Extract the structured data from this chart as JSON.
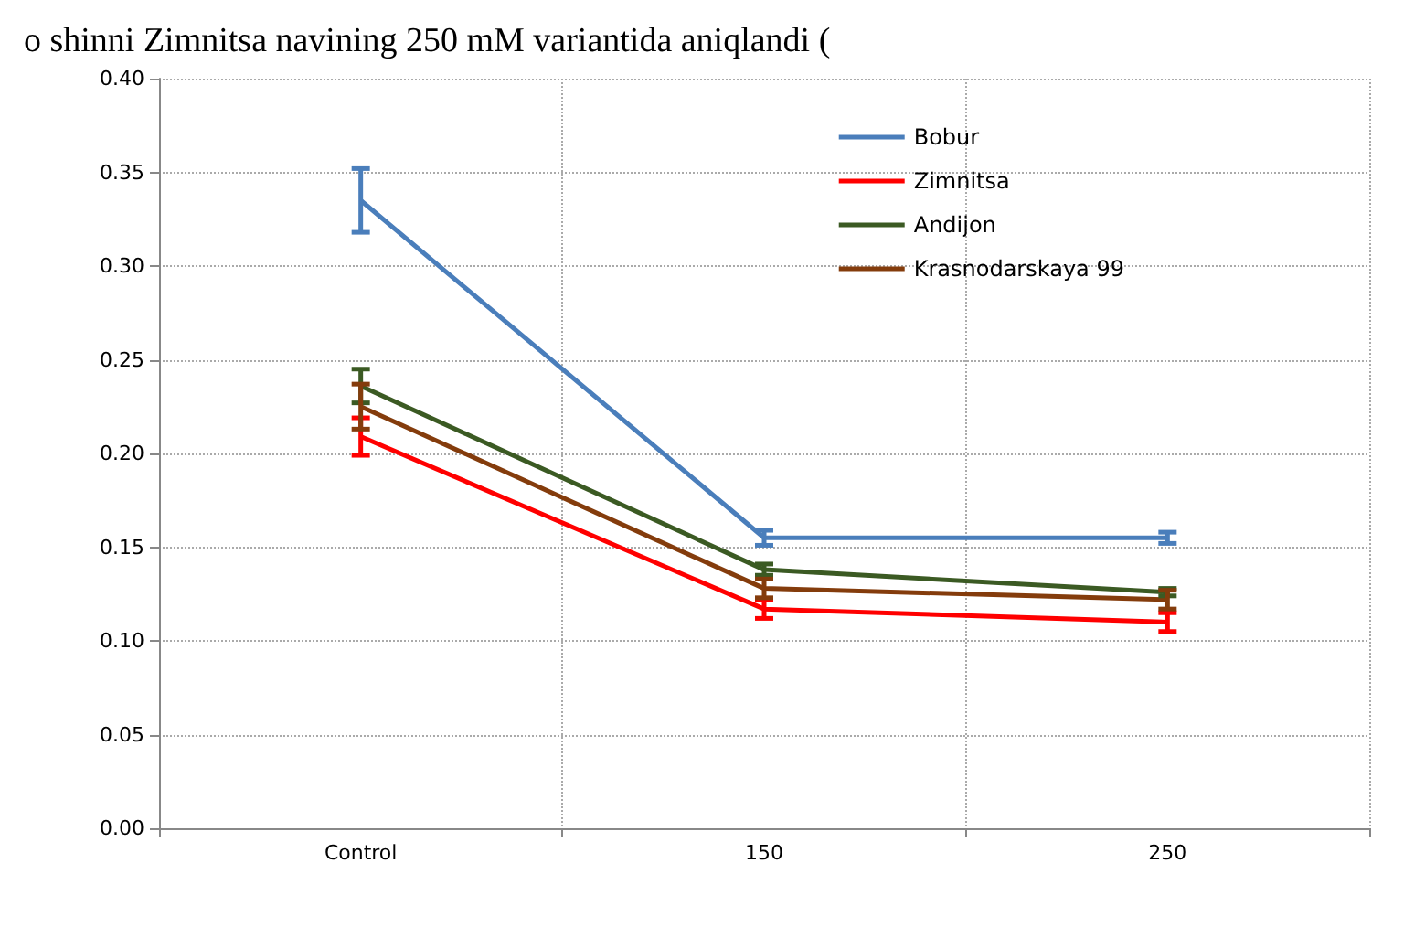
{
  "chart_data": {
    "type": "line",
    "title": "o shinni Zimnitsa navining 250 mM variantida aniqlandi (",
    "categories": [
      "Control",
      "150",
      "250"
    ],
    "series": [
      {
        "name": "Bobur",
        "color": "#4a7ebb",
        "values": [
          0.335,
          0.155,
          0.155
        ],
        "errors": [
          0.017,
          0.004,
          0.003
        ]
      },
      {
        "name": "Zimnitsa",
        "color": "#ff0000",
        "values": [
          0.209,
          0.117,
          0.11
        ],
        "errors": [
          0.01,
          0.005,
          0.005
        ]
      },
      {
        "name": "Andijon",
        "color": "#3b5a23",
        "values": [
          0.236,
          0.138,
          0.126
        ],
        "errors": [
          0.009,
          0.003,
          0.002
        ]
      },
      {
        "name": "Krasnodarskaya 99",
        "color": "#843c0c",
        "values": [
          0.225,
          0.128,
          0.122
        ],
        "errors": [
          0.012,
          0.005,
          0.005
        ]
      }
    ],
    "ylim": [
      0,
      0.4
    ],
    "yticks": [
      {
        "value": 0,
        "label": "0.00"
      },
      {
        "value": 0.05,
        "label": "0.05"
      },
      {
        "value": 0.1,
        "label": "0.10"
      },
      {
        "value": 0.15,
        "label": "0.15"
      },
      {
        "value": 0.2,
        "label": "0.20"
      },
      {
        "value": 0.25,
        "label": "0.25"
      },
      {
        "value": 0.3,
        "label": "0.30"
      },
      {
        "value": 0.35,
        "label": "0.35"
      },
      {
        "value": 0.4,
        "label": "0.40"
      }
    ],
    "grid": true,
    "legend": "top right",
    "marker": "none",
    "line_style": "solid"
  }
}
